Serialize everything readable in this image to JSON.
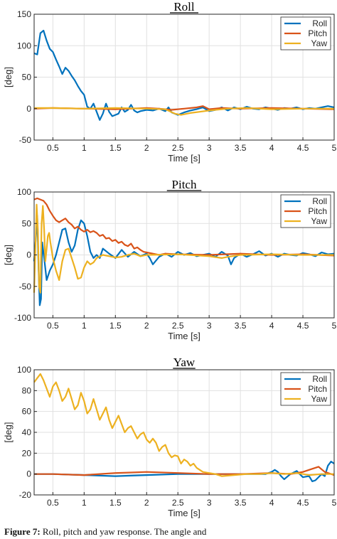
{
  "chart_data": [
    {
      "type": "line",
      "title": "Roll",
      "xlabel": "Time [s]",
      "ylabel": "[deg]",
      "xlim": [
        0.2,
        5.0
      ],
      "ylim": [
        -50,
        150
      ],
      "xticks": [
        "0.5",
        "1",
        "1.5",
        "2",
        "2.5",
        "3",
        "3.5",
        "4",
        "4.5",
        "5"
      ],
      "yticks": [
        "150",
        "100",
        "50",
        "0",
        "-50"
      ],
      "grid": true,
      "legend_position": "top-right",
      "series": [
        {
          "name": "Roll",
          "color": "#0072BD",
          "x": [
            0.2,
            0.25,
            0.3,
            0.35,
            0.4,
            0.45,
            0.5,
            0.55,
            0.6,
            0.65,
            0.7,
            0.75,
            0.8,
            0.85,
            0.9,
            0.95,
            1.0,
            1.05,
            1.1,
            1.15,
            1.2,
            1.25,
            1.3,
            1.35,
            1.4,
            1.45,
            1.5,
            1.55,
            1.6,
            1.65,
            1.7,
            1.75,
            1.8,
            1.85,
            1.9,
            2.0,
            2.1,
            2.2,
            2.3,
            2.35,
            2.4,
            2.5,
            2.6,
            2.7,
            2.8,
            2.9,
            3.0,
            3.1,
            3.2,
            3.3,
            3.4,
            3.5,
            3.6,
            3.7,
            3.8,
            3.9,
            4.0,
            4.1,
            4.2,
            4.3,
            4.4,
            4.5,
            4.6,
            4.7,
            4.8,
            4.9,
            5.0
          ],
          "y": [
            88,
            86,
            120,
            124,
            108,
            95,
            90,
            78,
            67,
            55,
            65,
            60,
            52,
            45,
            36,
            28,
            22,
            3,
            0,
            8,
            -5,
            -18,
            -8,
            8,
            -5,
            -12,
            -10,
            -8,
            2,
            -5,
            -2,
            6,
            -3,
            -6,
            -4,
            -2,
            -3,
            0,
            -4,
            2,
            -6,
            -10,
            -6,
            -3,
            -1,
            2,
            -4,
            -2,
            2,
            -3,
            2,
            -1,
            3,
            0,
            -1,
            2,
            0,
            -2,
            1,
            0,
            2,
            -1,
            1,
            0,
            2,
            4,
            2
          ]
        },
        {
          "name": "Pitch",
          "color": "#D95319",
          "x": [
            0.2,
            0.5,
            1.0,
            1.5,
            2.0,
            2.2,
            2.4,
            2.6,
            2.8,
            2.9,
            3.0,
            3.2,
            3.5,
            4.0,
            4.5,
            5.0
          ],
          "y": [
            0,
            1,
            0,
            -1,
            1,
            0,
            -2,
            0,
            2,
            4,
            -1,
            1,
            0,
            1,
            0,
            -1
          ]
        },
        {
          "name": "Yaw",
          "color": "#EDB120",
          "x": [
            0.2,
            0.5,
            1.0,
            1.5,
            2.0,
            2.3,
            2.45,
            2.55,
            2.7,
            2.85,
            3.0,
            3.3,
            3.6,
            4.0,
            4.5,
            5.0
          ],
          "y": [
            1,
            1,
            0,
            1,
            0,
            -1,
            -8,
            -10,
            -7,
            -5,
            -3,
            0,
            1,
            -1,
            0,
            0
          ]
        }
      ]
    },
    {
      "type": "line",
      "title": "Pitch",
      "xlabel": "Time [s]",
      "ylabel": "[deg]",
      "xlim": [
        0.2,
        5.0
      ],
      "ylim": [
        -100,
        100
      ],
      "xticks": [
        "0.5",
        "1",
        "1.5",
        "2",
        "2.5",
        "3",
        "3.5",
        "4",
        "4.5",
        "5"
      ],
      "yticks": [
        "100",
        "50",
        "0",
        "-50",
        "-100"
      ],
      "grid": true,
      "legend_position": "top-right",
      "series": [
        {
          "name": "Roll",
          "color": "#0072BD",
          "x": [
            0.2,
            0.23,
            0.25,
            0.27,
            0.29,
            0.31,
            0.33,
            0.36,
            0.4,
            0.45,
            0.5,
            0.55,
            0.6,
            0.65,
            0.7,
            0.75,
            0.8,
            0.85,
            0.9,
            0.95,
            1.0,
            1.05,
            1.1,
            1.15,
            1.2,
            1.25,
            1.3,
            1.4,
            1.5,
            1.6,
            1.7,
            1.8,
            1.9,
            2.0,
            2.05,
            2.1,
            2.2,
            2.3,
            2.4,
            2.5,
            2.6,
            2.7,
            2.8,
            2.9,
            3.0,
            3.1,
            3.2,
            3.3,
            3.35,
            3.4,
            3.5,
            3.6,
            3.7,
            3.8,
            3.9,
            4.0,
            4.1,
            4.2,
            4.3,
            4.4,
            4.5,
            4.6,
            4.7,
            4.8,
            4.9,
            5.0
          ],
          "y": [
            -10,
            30,
            62,
            -20,
            -80,
            -70,
            20,
            -5,
            -40,
            -25,
            -15,
            0,
            20,
            40,
            42,
            20,
            5,
            15,
            40,
            55,
            50,
            30,
            5,
            -5,
            0,
            -5,
            10,
            2,
            -5,
            8,
            -3,
            5,
            -2,
            2,
            -5,
            -15,
            -3,
            2,
            -3,
            5,
            0,
            3,
            -2,
            0,
            2,
            -3,
            5,
            -1,
            -15,
            -5,
            2,
            -3,
            1,
            6,
            -1,
            2,
            -3,
            2,
            0,
            -1,
            3,
            1,
            -2,
            4,
            1,
            2
          ]
        },
        {
          "name": "Pitch",
          "color": "#D95319",
          "x": [
            0.2,
            0.25,
            0.3,
            0.35,
            0.4,
            0.45,
            0.5,
            0.55,
            0.6,
            0.65,
            0.7,
            0.75,
            0.8,
            0.85,
            0.9,
            0.95,
            1.0,
            1.05,
            1.1,
            1.15,
            1.2,
            1.25,
            1.3,
            1.35,
            1.4,
            1.45,
            1.5,
            1.55,
            1.6,
            1.65,
            1.7,
            1.75,
            1.8,
            1.85,
            1.9,
            1.95,
            2.0,
            2.1,
            2.2,
            2.3,
            2.5,
            3.0,
            3.5,
            4.0,
            4.5,
            5.0
          ],
          "y": [
            88,
            90,
            88,
            86,
            80,
            70,
            62,
            55,
            52,
            55,
            58,
            52,
            48,
            42,
            45,
            40,
            37,
            40,
            36,
            38,
            35,
            30,
            32,
            26,
            27,
            22,
            24,
            19,
            21,
            16,
            14,
            18,
            10,
            12,
            8,
            5,
            4,
            2,
            0,
            2,
            1,
            0,
            2,
            0,
            1,
            -1
          ]
        },
        {
          "name": "Yaw",
          "color": "#EDB120",
          "x": [
            0.2,
            0.22,
            0.24,
            0.26,
            0.28,
            0.3,
            0.32,
            0.34,
            0.36,
            0.38,
            0.4,
            0.42,
            0.44,
            0.46,
            0.5,
            0.55,
            0.6,
            0.65,
            0.7,
            0.75,
            0.8,
            0.85,
            0.9,
            0.95,
            1.0,
            1.05,
            1.1,
            1.15,
            1.2,
            1.3,
            1.4,
            1.5,
            1.6,
            1.7,
            1.8,
            1.9,
            2.0,
            2.5,
            3.0,
            3.2,
            3.3,
            3.5,
            4.0,
            4.5,
            5.0
          ],
          "y": [
            -60,
            10,
            80,
            40,
            -50,
            -60,
            50,
            78,
            40,
            -10,
            10,
            30,
            35,
            20,
            -5,
            -25,
            -40,
            -10,
            8,
            10,
            -5,
            -20,
            -38,
            -36,
            -20,
            -10,
            -15,
            -12,
            -5,
            0,
            -2,
            -4,
            -3,
            0,
            2,
            -2,
            0,
            1,
            -2,
            -5,
            -3,
            0,
            1,
            0,
            0
          ]
        }
      ]
    },
    {
      "type": "line",
      "title": "Yaw",
      "xlabel": "Time [s]",
      "ylabel": "[deg]",
      "xlim": [
        0.2,
        5.0
      ],
      "ylim": [
        -20,
        100
      ],
      "xticks": [
        "0.5",
        "1",
        "1.5",
        "2",
        "2.5",
        "3",
        "3.5",
        "4",
        "4.5",
        "5"
      ],
      "yticks": [
        "100",
        "80",
        "60",
        "40",
        "20",
        "0",
        "-20"
      ],
      "grid": true,
      "legend_position": "top-right",
      "series": [
        {
          "name": "Roll",
          "color": "#0072BD",
          "x": [
            0.2,
            0.5,
            1.0,
            1.5,
            2.0,
            2.5,
            3.0,
            3.5,
            3.9,
            4.0,
            4.05,
            4.1,
            4.15,
            4.2,
            4.3,
            4.4,
            4.5,
            4.6,
            4.65,
            4.7,
            4.75,
            4.8,
            4.85,
            4.9,
            4.95,
            5.0
          ],
          "y": [
            0,
            0,
            -1,
            -2,
            -1,
            0,
            0,
            0,
            0,
            2,
            4,
            2,
            -2,
            -5,
            0,
            3,
            -3,
            -2,
            -7,
            -6,
            -3,
            0,
            -2,
            8,
            12,
            10
          ]
        },
        {
          "name": "Pitch",
          "color": "#D95319",
          "x": [
            0.2,
            0.5,
            1.0,
            1.5,
            2.0,
            2.5,
            3.0,
            3.5,
            4.0,
            4.3,
            4.5,
            4.65,
            4.75,
            4.85,
            5.0
          ],
          "y": [
            0,
            0,
            -1,
            1,
            2,
            1,
            0,
            0,
            1,
            0,
            2,
            5,
            7,
            2,
            -1
          ]
        },
        {
          "name": "Yaw",
          "color": "#EDB120",
          "x": [
            0.2,
            0.25,
            0.3,
            0.35,
            0.4,
            0.45,
            0.5,
            0.55,
            0.6,
            0.65,
            0.7,
            0.75,
            0.8,
            0.85,
            0.9,
            0.95,
            1.0,
            1.05,
            1.1,
            1.15,
            1.2,
            1.25,
            1.3,
            1.35,
            1.4,
            1.45,
            1.5,
            1.55,
            1.6,
            1.65,
            1.7,
            1.75,
            1.8,
            1.85,
            1.9,
            1.95,
            2.0,
            2.05,
            2.1,
            2.15,
            2.2,
            2.25,
            2.3,
            2.35,
            2.4,
            2.45,
            2.5,
            2.55,
            2.6,
            2.65,
            2.7,
            2.75,
            2.8,
            2.85,
            2.9,
            3.0,
            3.1,
            3.2,
            3.4,
            3.6,
            3.8,
            4.0,
            4.2,
            4.4,
            4.6,
            4.8,
            5.0
          ],
          "y": [
            88,
            92,
            96,
            90,
            82,
            74,
            84,
            88,
            80,
            70,
            74,
            82,
            72,
            62,
            66,
            78,
            70,
            58,
            62,
            72,
            62,
            52,
            58,
            64,
            52,
            44,
            50,
            56,
            48,
            40,
            44,
            46,
            40,
            34,
            38,
            40,
            33,
            30,
            34,
            30,
            22,
            26,
            28,
            20,
            16,
            18,
            17,
            10,
            14,
            12,
            8,
            10,
            6,
            4,
            2,
            1,
            0,
            -2,
            -1,
            0,
            0,
            1,
            0,
            1,
            -1,
            0,
            0
          ]
        }
      ]
    }
  ],
  "caption": {
    "label": "Figure 7:",
    "text": " Roll, pitch and yaw response. The angle and"
  }
}
